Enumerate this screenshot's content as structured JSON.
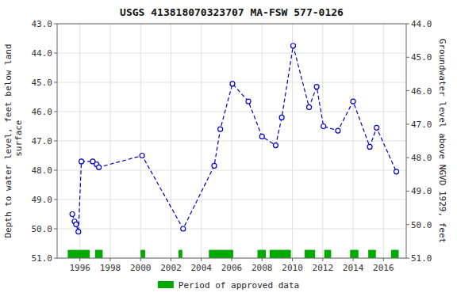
{
  "chart_data": {
    "type": "line",
    "title": "USGS 413818070323707 MA-FSW  577-0126",
    "ylabel": "Depth to water level, feet below land\n surface",
    "y2label": "Groundwater level above NGVD 1929, feet",
    "x": [
      1995.5,
      1995.65,
      1995.75,
      1995.9,
      1996.1,
      1996.85,
      1997.1,
      1997.25,
      2000.1,
      2002.8,
      2004.85,
      2005.25,
      2006.05,
      2007.1,
      2008.0,
      2008.9,
      2009.3,
      2010.05,
      2011.1,
      2011.6,
      2012.05,
      2013.0,
      2014.0,
      2015.1,
      2015.55,
      2016.85
    ],
    "series": [
      {
        "values": [
          49.5,
          49.75,
          49.85,
          50.1,
          47.7,
          47.7,
          47.8,
          47.9,
          47.5,
          50.0,
          47.85,
          46.6,
          45.05,
          45.65,
          46.85,
          47.15,
          46.2,
          43.75,
          45.85,
          45.15,
          46.5,
          46.65,
          45.65,
          47.2,
          46.55,
          48.05
        ],
        "color": "#0000CC",
        "marker": "circle",
        "line_style": "dashed"
      }
    ],
    "spans": {
      "name": "Period of approved data",
      "color": "#00aa00",
      "ranges": [
        [
          1995.2,
          1996.65
        ],
        [
          1997.0,
          1997.5
        ],
        [
          2000.0,
          2000.3
        ],
        [
          2002.5,
          2002.75
        ],
        [
          2004.5,
          2006.1
        ],
        [
          2007.7,
          2008.25
        ],
        [
          2008.5,
          2009.9
        ],
        [
          2010.8,
          2011.5
        ],
        [
          2012.1,
          2012.55
        ],
        [
          2013.8,
          2014.35
        ],
        [
          2015.0,
          2015.5
        ],
        [
          2016.5,
          2017.0
        ]
      ]
    },
    "xlim": [
      1994.5,
      2017.5
    ],
    "xticks": [
      1996,
      1998,
      2000,
      2002,
      2004,
      2006,
      2008,
      2010,
      2012,
      2014,
      2016
    ],
    "ylim": [
      51.0,
      43.0
    ],
    "yticks": [
      {
        "value": 43.0,
        "label": "43.0"
      },
      {
        "value": 44.0,
        "label": "44.0"
      },
      {
        "value": 45.0,
        "label": "45.0"
      },
      {
        "value": 46.0,
        "label": "46.0"
      },
      {
        "value": 47.0,
        "label": "47.0"
      },
      {
        "value": 48.0,
        "label": "48.0"
      },
      {
        "value": 49.0,
        "label": "49.0"
      },
      {
        "value": 50.0,
        "label": "50.0"
      },
      {
        "value": 51.0,
        "label": "51.0"
      }
    ],
    "y2lim": [
      51.0,
      44.0
    ],
    "y2ticks": [
      {
        "value": 51.0,
        "label": "51.0"
      },
      {
        "value": 50.0,
        "label": "50.0"
      },
      {
        "value": 49.0,
        "label": "49.0"
      },
      {
        "value": 48.0,
        "label": "48.0"
      },
      {
        "value": 47.0,
        "label": "47.0"
      },
      {
        "value": 46.0,
        "label": "46.0"
      },
      {
        "value": 45.0,
        "label": "45.0"
      },
      {
        "value": 44.0,
        "label": "44.0"
      }
    ],
    "grid": true,
    "legend": "bottom"
  }
}
